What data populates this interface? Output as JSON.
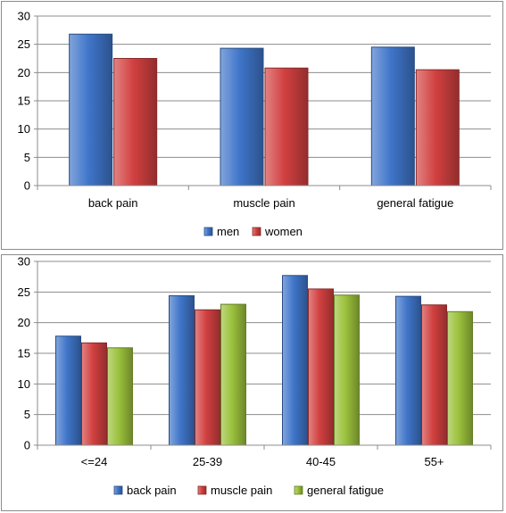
{
  "chart_data": [
    {
      "type": "bar",
      "categories": [
        "back pain",
        "muscle pain",
        "general fatigue"
      ],
      "series": [
        {
          "name": "men",
          "color": "#3f75c9",
          "values": [
            26.8,
            24.3,
            24.5
          ]
        },
        {
          "name": "women",
          "color": "#d24040",
          "values": [
            22.5,
            20.8,
            20.5
          ]
        }
      ],
      "yticks": [
        0,
        5,
        10,
        15,
        20,
        25,
        30
      ],
      "ylim": [
        0,
        30
      ],
      "grid": true,
      "legend": "bottom"
    },
    {
      "type": "bar",
      "categories": [
        "<=24",
        "25-39",
        "40-45",
        "55+"
      ],
      "series": [
        {
          "name": "back pain",
          "color": "#3f75c9",
          "values": [
            17.8,
            24.4,
            27.7,
            24.3
          ]
        },
        {
          "name": "muscle pain",
          "color": "#d24040",
          "values": [
            16.7,
            22.1,
            25.5,
            22.9
          ]
        },
        {
          "name": "general fatigue",
          "color": "#9bc13c",
          "values": [
            15.9,
            23.0,
            24.5,
            21.8
          ]
        }
      ],
      "yticks": [
        0,
        5,
        10,
        15,
        20,
        25,
        30
      ],
      "ylim": [
        0,
        30
      ],
      "grid": true,
      "legend": "bottom"
    }
  ]
}
